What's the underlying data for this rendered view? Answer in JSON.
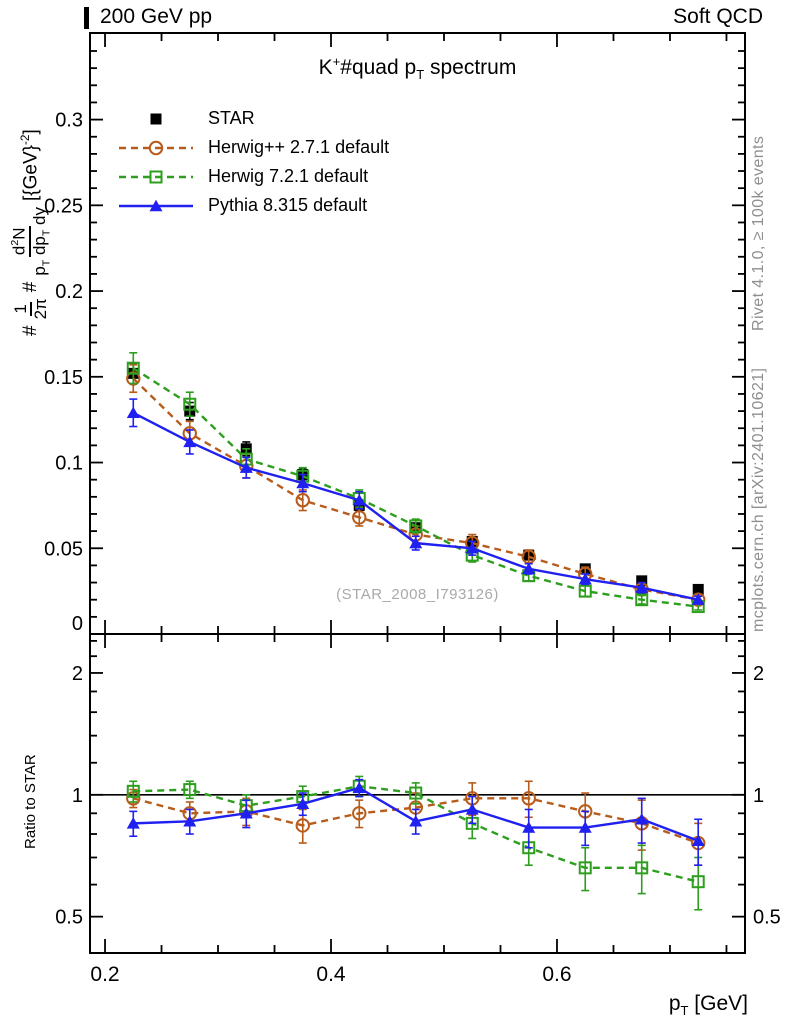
{
  "header": {
    "left": "200 GeV pp",
    "right": "Soft QCD"
  },
  "panel_title": {
    "k": "K",
    "sup": "+",
    "mid": "#quad p",
    "sub": "T",
    "rest": " spectrum"
  },
  "watermark": "(STAR_2008_I793126)",
  "side_notes": {
    "top": "Rivet 4.1.0, ≥ 100k events",
    "bottom": "mcplots.cern.ch [arXiv:2401.10621]"
  },
  "axis_labels": {
    "y_main": {
      "hash1": "#",
      "num1": "1",
      "den1": "2π",
      "hash2": "#",
      "num2_a": "d",
      "num2_sup": "2",
      "num2_b": "N",
      "den2_a": "p",
      "den2_sub_a": "T",
      "den2_b": " dp",
      "den2_sub_b": "T",
      "den2_c": " dy",
      "unit_a": " [{GeV}",
      "unit_sup": "-2",
      "unit_b": "]"
    },
    "y_ratio": "Ratio to STAR",
    "x": {
      "p": "p",
      "sub": "T",
      "units": " [GeV]"
    }
  },
  "legend": [
    {
      "label": "STAR",
      "marker": "filled-square",
      "color": "#000000",
      "line": "none"
    },
    {
      "label": "Herwig++ 2.7.1 default",
      "marker": "open-circle",
      "color": "#b85c1c",
      "line": "dashed"
    },
    {
      "label": "Herwig 7.2.1 default",
      "marker": "open-square",
      "color": "#2d9e1e",
      "line": "dashed"
    },
    {
      "label": "Pythia 8.315 default",
      "marker": "filled-triangle",
      "color": "#2020f0",
      "line": "solid"
    }
  ],
  "chart_data": [
    {
      "id": "main",
      "type": "line",
      "title": "K^+ #quad p_T spectrum",
      "xlabel": "p_T [GeV]",
      "ylabel": "#1/2pi # d^2N/(p_T dp_T dy) [{GeV}^-2]",
      "grid": false,
      "legend_position": "top-left-inside",
      "x": [
        0.225,
        0.275,
        0.325,
        0.375,
        0.425,
        0.475,
        0.525,
        0.575,
        0.625,
        0.675,
        0.725
      ],
      "xlim": [
        0.1867,
        0.7664
      ],
      "ylim": [
        0,
        0.3505
      ],
      "yscale": "linear",
      "xticks_major": [
        0.2,
        0.4,
        0.6
      ],
      "xticks_minor": [
        0.25,
        0.3,
        0.35,
        0.45,
        0.5,
        0.55,
        0.65,
        0.7,
        0.75
      ],
      "xtick_labels": null,
      "yticks_major": [
        0,
        0.05,
        0.1,
        0.15,
        0.2,
        0.25,
        0.3
      ],
      "ytick_labels": [
        "0",
        "0.05",
        "0.1",
        "0.15",
        "0.2",
        "0.25",
        "0.3"
      ],
      "yticks_minor_step": 0.01,
      "series": [
        {
          "name": "STAR",
          "marker": "filled-square",
          "color": "#000000",
          "line": "none",
          "values": [
            0.152,
            0.13,
            0.108,
            0.093,
            0.075,
            0.062,
            0.054,
            0.046,
            0.038,
            0.031,
            0.026
          ],
          "yerr": [
            0.006,
            0.005,
            0.004,
            0.003,
            0.003,
            0.002,
            0.002,
            0.002,
            0.002,
            0.0015,
            0.0015
          ]
        },
        {
          "name": "Herwig++ 2.7.1 default",
          "marker": "open-circle",
          "color": "#b85c1c",
          "line": "dashed",
          "values": [
            0.149,
            0.117,
            0.098,
            0.078,
            0.068,
            0.058,
            0.053,
            0.045,
            0.035,
            0.026,
            0.02
          ],
          "yerr": [
            0.008,
            0.007,
            0.007,
            0.006,
            0.005,
            0.005,
            0.005,
            0.004,
            0.004,
            0.003,
            0.003
          ]
        },
        {
          "name": "Herwig 7.2.1 default",
          "marker": "open-square",
          "color": "#2d9e1e",
          "line": "dashed",
          "values": [
            0.155,
            0.134,
            0.102,
            0.092,
            0.079,
            0.063,
            0.046,
            0.034,
            0.025,
            0.02,
            0.016
          ],
          "yerr": [
            0.009,
            0.007,
            0.006,
            0.005,
            0.005,
            0.004,
            0.004,
            0.003,
            0.003,
            0.0025,
            0.002
          ]
        },
        {
          "name": "Pythia 8.315 default",
          "marker": "filled-triangle",
          "color": "#2020f0",
          "line": "solid",
          "values": [
            0.129,
            0.112,
            0.097,
            0.088,
            0.078,
            0.053,
            0.05,
            0.038,
            0.032,
            0.027,
            0.02
          ],
          "yerr": [
            0.008,
            0.007,
            0.006,
            0.005,
            0.005,
            0.004,
            0.004,
            0.003,
            0.003,
            0.003,
            0.002
          ]
        }
      ]
    },
    {
      "id": "ratio",
      "type": "line",
      "title": "",
      "xlabel": "p_T [GeV]",
      "ylabel": "Ratio to STAR",
      "grid": false,
      "ref_line": 1,
      "x": [
        0.225,
        0.275,
        0.325,
        0.375,
        0.425,
        0.475,
        0.525,
        0.575,
        0.625,
        0.675,
        0.725
      ],
      "xlim": [
        0.1867,
        0.7664
      ],
      "ylim": [
        0.4066,
        2.496
      ],
      "yscale": "log",
      "xticks_major": [
        0.2,
        0.4,
        0.6
      ],
      "xticks_minor": [
        0.25,
        0.3,
        0.35,
        0.45,
        0.5,
        0.55,
        0.65,
        0.7,
        0.75
      ],
      "xtick_labels": [
        "0.2",
        "0.4",
        "0.6"
      ],
      "yticks_major": [
        0.5,
        1,
        2
      ],
      "ytick_labels": [
        "0.5",
        "1",
        "2"
      ],
      "yticks_minor": [
        0.6,
        0.7,
        0.8,
        0.9,
        1.2,
        1.4,
        1.6,
        1.8,
        2.2,
        2.4
      ],
      "right_labels": true,
      "series": [
        {
          "name": "Herwig++ 2.7.1 default",
          "marker": "open-circle",
          "color": "#b85c1c",
          "line": "dashed",
          "values": [
            0.98,
            0.9,
            0.91,
            0.84,
            0.9,
            0.93,
            0.98,
            0.98,
            0.91,
            0.85,
            0.76
          ],
          "yerr": [
            0.05,
            0.06,
            0.07,
            0.08,
            0.07,
            0.08,
            0.09,
            0.1,
            0.1,
            0.12,
            0.09
          ]
        },
        {
          "name": "Herwig 7.2.1 default",
          "marker": "open-square",
          "color": "#2d9e1e",
          "line": "dashed",
          "values": [
            1.02,
            1.03,
            0.94,
            0.99,
            1.05,
            1.01,
            0.85,
            0.74,
            0.66,
            0.66,
            0.61
          ],
          "yerr": [
            0.06,
            0.05,
            0.06,
            0.06,
            0.06,
            0.06,
            0.07,
            0.07,
            0.08,
            0.09,
            0.09
          ]
        },
        {
          "name": "Pythia 8.315 default",
          "marker": "filled-triangle",
          "color": "#2020f0",
          "line": "solid",
          "values": [
            0.85,
            0.86,
            0.9,
            0.95,
            1.04,
            0.86,
            0.92,
            0.83,
            0.83,
            0.87,
            0.77
          ],
          "yerr": [
            0.06,
            0.06,
            0.07,
            0.06,
            0.05,
            0.06,
            0.07,
            0.09,
            0.08,
            0.11,
            0.1
          ]
        }
      ]
    }
  ]
}
